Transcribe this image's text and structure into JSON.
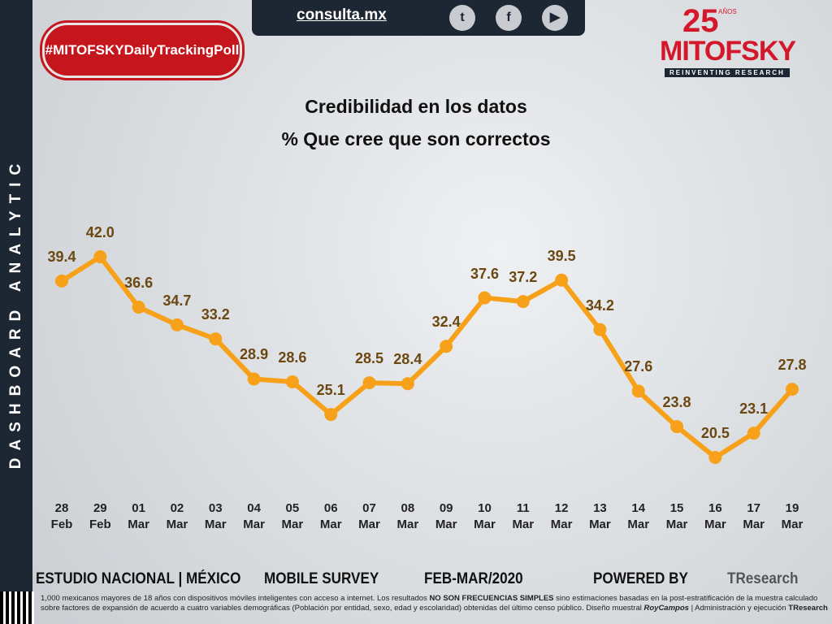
{
  "header": {
    "site": "consulta.mx",
    "hashtag": "#MITOFSKYDailyTrackingPoll",
    "brand": "MITOFSKY",
    "tagline": "REINVENTING RESEARCH",
    "anniversary": "25",
    "anniversary_unit": "AÑOS"
  },
  "sidebar": "DASHBOARD ANALYTIC",
  "chart_data": {
    "type": "line",
    "title": "Credibilidad en los datos",
    "subtitle": "% Que cree que son correctos",
    "categories": [
      "28 Feb",
      "29 Feb",
      "01 Mar",
      "02 Mar",
      "03 Mar",
      "04 Mar",
      "05 Mar",
      "06 Mar",
      "07 Mar",
      "08 Mar",
      "09 Mar",
      "10 Mar",
      "11 Mar",
      "12 Mar",
      "13 Mar",
      "14 Mar",
      "15 Mar",
      "16 Mar",
      "17 Mar",
      "19 Mar"
    ],
    "values": [
      39.4,
      42.0,
      36.6,
      34.7,
      33.2,
      28.9,
      28.6,
      25.1,
      28.5,
      28.4,
      32.4,
      37.6,
      37.2,
      39.5,
      34.2,
      27.6,
      23.8,
      20.5,
      23.1,
      27.8
    ],
    "value_labels": [
      "39.4",
      "42.0",
      "36.6",
      "34.7",
      "33.2",
      "28.9",
      "28.6",
      "25.1",
      "28.5",
      "28.4",
      "32.4",
      "37.6",
      "37.2",
      "39.5",
      "34.2",
      "27.6",
      "23.8",
      "20.5",
      "23.1",
      "27.8"
    ],
    "color": "#f7a11a"
  },
  "footer": {
    "study": "ESTUDIO NACIONAL | MÉXICO",
    "method": "MOBILE SURVEY",
    "period": "FEB-MAR/2020",
    "powered": "POWERED BY",
    "partner": "TResearch",
    "note": [
      "1,000 mexicanos mayores de 18 años con dispositivos móviles inteligentes con acceso a internet. Los resultados ",
      "NO SON FRECUENCIAS SIMPLES",
      " sino estimaciones basadas en la post-estratificación de la muestra calculado sobre factores de expansión de acuerdo a cuatro variables demográficas (Población por entidad, sexo, edad y escolaridad) obtenidas del último censo público. Diseño muestral ",
      "RoyCampos",
      " | Administración y ejecución ",
      "TResearch"
    ]
  }
}
